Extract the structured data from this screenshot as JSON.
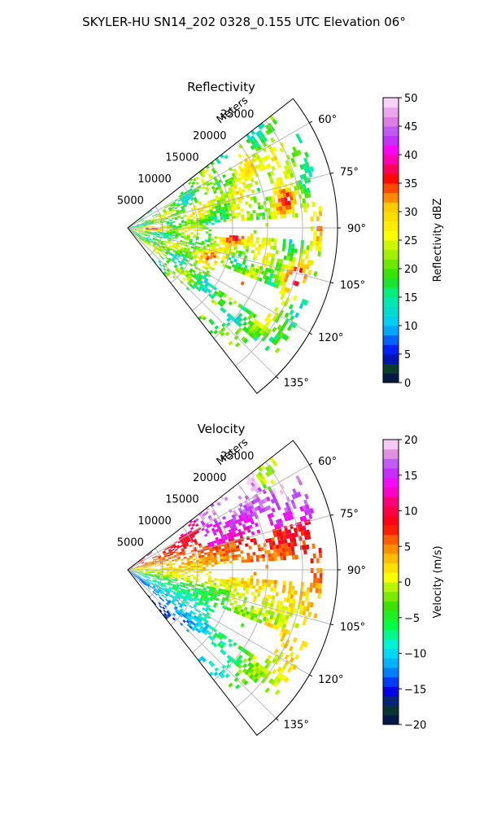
{
  "figure": {
    "title": "SKYLER-HU  SN14_202  0328_0.155 UTC Elevation 06°"
  },
  "chart_data": [
    {
      "type": "heatmap",
      "subtype": "polar-sector-radar",
      "title": "Reflectivity",
      "range_label": "Meters",
      "range_ticks": [
        "5000",
        "10000",
        "15000",
        "20000",
        "25000"
      ],
      "range_values": [
        5000,
        10000,
        15000,
        20000,
        25000
      ],
      "rmax": 30000,
      "azimuth_ticks": [
        "60°",
        "75°",
        "90°",
        "105°",
        "120°",
        "135°"
      ],
      "azimuth_values": [
        60,
        75,
        90,
        105,
        120,
        135
      ],
      "azimuth_range": [
        52,
        142
      ],
      "grid": true,
      "colorbar": {
        "label": "Reflectivity dBZ",
        "ticks": [
          "0",
          "5",
          "10",
          "15",
          "20",
          "25",
          "30",
          "35",
          "40",
          "45",
          "50"
        ],
        "vmin": 0,
        "vmax": 50,
        "stops": [
          [
            0,
            "#000a4f"
          ],
          [
            0.05,
            "#0a3d2f"
          ],
          [
            0.1,
            "#0000f0"
          ],
          [
            0.2,
            "#00c8ff"
          ],
          [
            0.3,
            "#00f0a0"
          ],
          [
            0.37,
            "#22e000"
          ],
          [
            0.45,
            "#a0f000"
          ],
          [
            0.52,
            "#ffff00"
          ],
          [
            0.62,
            "#ffc800"
          ],
          [
            0.68,
            "#ff5000"
          ],
          [
            0.72,
            "#ff0000"
          ],
          [
            0.77,
            "#ff0090"
          ],
          [
            0.82,
            "#ff00ff"
          ],
          [
            0.86,
            "#b040ff"
          ],
          [
            0.92,
            "#e080e0"
          ],
          [
            1.0,
            "#ffe8ff"
          ]
        ]
      }
    },
    {
      "type": "heatmap",
      "subtype": "polar-sector-radar",
      "title": "Velocity",
      "range_label": "Meters",
      "range_ticks": [
        "5000",
        "10000",
        "15000",
        "20000",
        "25000"
      ],
      "range_values": [
        5000,
        10000,
        15000,
        20000,
        25000
      ],
      "rmax": 30000,
      "azimuth_ticks": [
        "60°",
        "75°",
        "90°",
        "105°",
        "120°",
        "135°"
      ],
      "azimuth_values": [
        60,
        75,
        90,
        105,
        120,
        135
      ],
      "azimuth_range": [
        52,
        142
      ],
      "grid": true,
      "colorbar": {
        "label": "Velocity (m/s)",
        "ticks": [
          "−20",
          "−15",
          "−10",
          "−5",
          "0",
          "5",
          "10",
          "15",
          "20"
        ],
        "vmin": -20,
        "vmax": 20,
        "stops": [
          [
            0,
            "#000a4f"
          ],
          [
            0.06,
            "#0a3d2f"
          ],
          [
            0.12,
            "#0000f0"
          ],
          [
            0.2,
            "#00a0ff"
          ],
          [
            0.27,
            "#00f0f0"
          ],
          [
            0.35,
            "#00ff40"
          ],
          [
            0.42,
            "#40e000"
          ],
          [
            0.47,
            "#a0f000"
          ],
          [
            0.52,
            "#ffff00"
          ],
          [
            0.58,
            "#ffc000"
          ],
          [
            0.64,
            "#ff7000"
          ],
          [
            0.7,
            "#ff0000"
          ],
          [
            0.78,
            "#ff0070"
          ],
          [
            0.84,
            "#ff00ff"
          ],
          [
            0.9,
            "#b040ff"
          ],
          [
            0.95,
            "#e090e0"
          ],
          [
            1.0,
            "#ffe8ff"
          ]
        ]
      }
    }
  ]
}
